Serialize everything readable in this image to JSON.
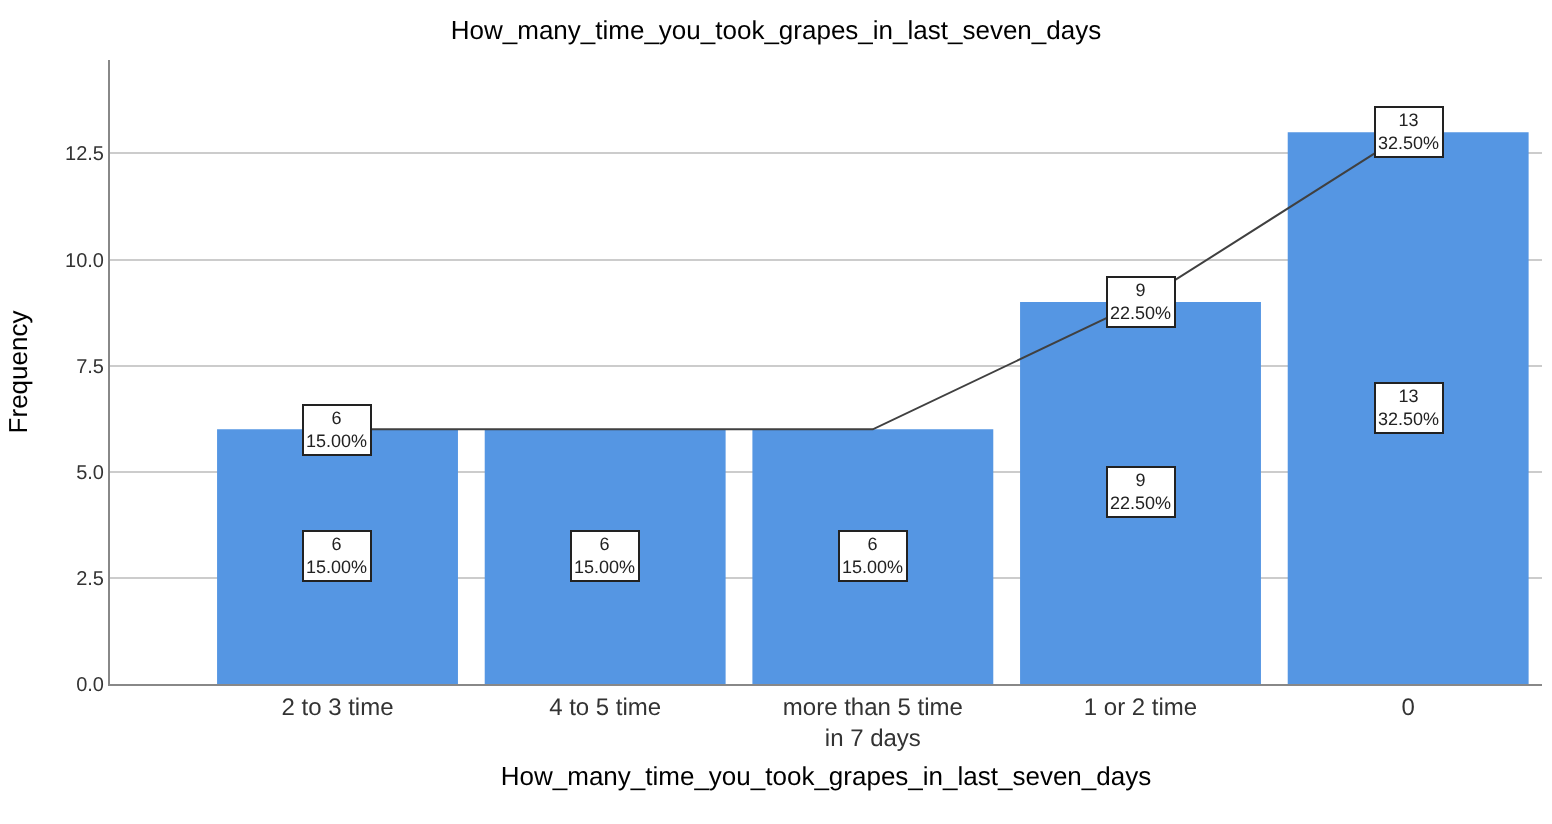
{
  "chart_data": {
    "type": "bar",
    "title": "How_many_time_you_took_grapes_in_last_seven_days",
    "xlabel": "How_many_time_you_took_grapes_in_last_seven_days",
    "ylabel": "Frequency",
    "categories": [
      "2 to 3 time",
      "4 to 5 time",
      "more than 5 time\nin 7 days",
      "1 or 2 time",
      "0"
    ],
    "series": [
      {
        "color": "#5596e3",
        "values": [
          6,
          6,
          6,
          9,
          13
        ],
        "value_labels": [
          "6\n15.00%",
          "6\n15.00%",
          "6\n15.00%",
          "9\n22.50%",
          "13\n32.50%"
        ]
      },
      {
        "type": "line",
        "color": "#404040",
        "values": [
          6,
          6,
          6,
          9,
          13
        ],
        "value_labels": [
          "6\n15.00%",
          null,
          null,
          "9\n22.50%",
          "13\n32.50%"
        ]
      }
    ],
    "ylim": [
      0,
      14.7
    ],
    "yticks": [
      {
        "value": 0,
        "label": "0.0"
      },
      {
        "value": 2.5,
        "label": "2.5"
      },
      {
        "value": 5,
        "label": "5.0"
      },
      {
        "value": 7.5,
        "label": "7.5"
      },
      {
        "value": 10,
        "label": "10.0"
      },
      {
        "value": 12.5,
        "label": "12.5"
      }
    ],
    "grid": "y",
    "line_style": "solid"
  }
}
